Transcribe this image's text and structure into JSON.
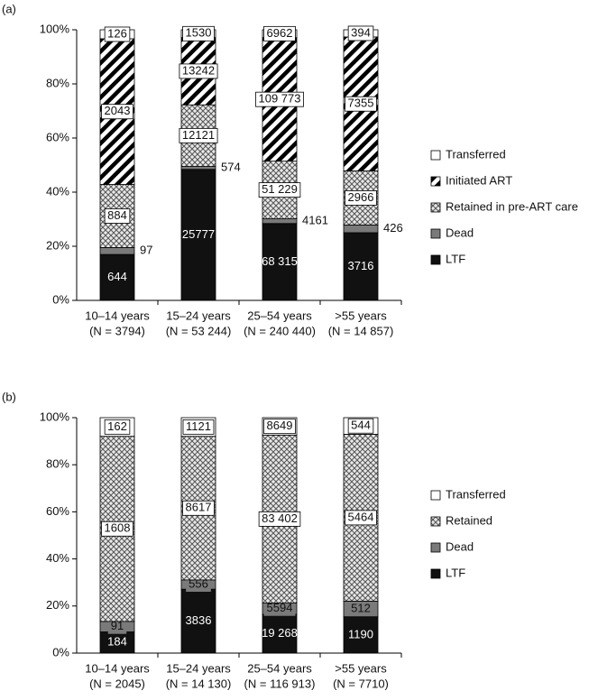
{
  "chart_data": [
    {
      "type": "bar",
      "stacking": "percent",
      "panel_label": "(a)",
      "categories": [
        "10–14 years",
        "15–24 years",
        "25–54 years",
        ">55 years"
      ],
      "category_notes": [
        "(N = 3794)",
        "(N = 53 244)",
        "(N = 240 440)",
        "(N = 14 857)"
      ],
      "ylim": [
        0,
        100
      ],
      "yticks": [
        {
          "value": 0,
          "label": "0%"
        },
        {
          "value": 20,
          "label": "20%"
        },
        {
          "value": 40,
          "label": "40%"
        },
        {
          "value": 60,
          "label": "60%"
        },
        {
          "value": 80,
          "label": "80%"
        },
        {
          "value": 100,
          "label": "100%"
        }
      ],
      "series": [
        {
          "name": "LTF",
          "color": "#111111",
          "values": [
            644,
            25777,
            68315,
            3716
          ],
          "value_labels": [
            "644",
            "25777",
            "68 315",
            "3716"
          ]
        },
        {
          "name": "Dead",
          "color": "#7a7a7a",
          "values": [
            97,
            574,
            4161,
            426
          ]
        },
        {
          "name": "Retained in pre-ART care",
          "color": "#999999",
          "pattern": "crosshatch",
          "values": [
            884,
            12121,
            51229,
            2966
          ],
          "value_labels": [
            "884",
            "12121",
            "51 229",
            "2966"
          ]
        },
        {
          "name": "Initiated ART",
          "color": "#000000",
          "pattern": "stripes",
          "values": [
            2043,
            13242,
            109773,
            7355
          ],
          "value_labels": [
            "2043",
            "13242",
            "109 773",
            "7355"
          ]
        },
        {
          "name": "Transferred",
          "color": "#ffffff",
          "values": [
            126,
            1530,
            6962,
            394
          ]
        }
      ]
    },
    {
      "type": "bar",
      "stacking": "percent",
      "panel_label": "(b)",
      "categories": [
        "10–14 years",
        "15–24 years",
        "25–54 years",
        ">55 years"
      ],
      "category_notes": [
        "(N = 2045)",
        "(N = 14 130)",
        "(N = 116 913)",
        "(N = 7710)"
      ],
      "ylim": [
        0,
        100
      ],
      "yticks": [
        {
          "value": 0,
          "label": "0%"
        },
        {
          "value": 20,
          "label": "20%"
        },
        {
          "value": 40,
          "label": "40%"
        },
        {
          "value": 60,
          "label": "60%"
        },
        {
          "value": 80,
          "label": "80%"
        },
        {
          "value": 100,
          "label": "100%"
        }
      ],
      "series": [
        {
          "name": "LTF",
          "color": "#111111",
          "values": [
            184,
            3836,
            19268,
            1190
          ],
          "value_labels": [
            "184",
            "3836",
            "19 268",
            "1190"
          ]
        },
        {
          "name": "Dead",
          "color": "#7a7a7a",
          "values": [
            91,
            556,
            5594,
            512
          ]
        },
        {
          "name": "Retained",
          "color": "#999999",
          "pattern": "crosshatch",
          "values": [
            1608,
            8617,
            83402,
            5464
          ],
          "value_labels": [
            "1608",
            "8617",
            "83 402",
            "5464"
          ]
        },
        {
          "name": "Transferred",
          "color": "#ffffff",
          "values": [
            162,
            1121,
            8649,
            544
          ]
        }
      ]
    }
  ]
}
